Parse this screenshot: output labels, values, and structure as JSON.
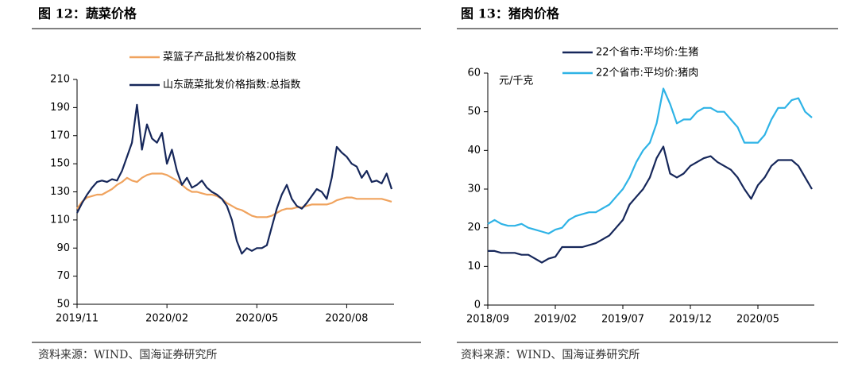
{
  "chart_data": [
    {
      "type": "line",
      "title": "图 12：蔬菜价格",
      "source": "资料来源：WIND、国海证券研究所",
      "legend": "upper left",
      "grid": false,
      "categories": [
        "2019/11",
        null,
        null,
        null,
        null,
        null,
        null,
        null,
        null,
        null,
        null,
        null,
        null,
        null,
        null,
        null,
        null,
        null,
        "2020/02",
        null,
        null,
        null,
        null,
        null,
        null,
        null,
        null,
        null,
        null,
        null,
        null,
        null,
        null,
        null,
        null,
        null,
        "2020/05",
        null,
        null,
        null,
        null,
        null,
        null,
        null,
        null,
        null,
        null,
        null,
        null,
        null,
        null,
        null,
        null,
        null,
        "2020/08",
        null,
        null,
        null,
        null,
        null,
        null,
        null,
        null,
        null
      ],
      "ylim": [
        50,
        210
      ],
      "yticks": [
        50,
        70,
        90,
        110,
        130,
        150,
        170,
        190,
        210
      ],
      "series": [
        {
          "name": "菜篮子产品批发价格200指数",
          "color": "#f0a35e",
          "values": [
            118,
            123,
            126,
            127,
            128,
            128,
            130,
            132,
            135,
            137,
            140,
            138,
            137,
            140,
            142,
            143,
            143,
            143,
            142,
            140,
            138,
            135,
            132,
            130,
            130,
            129,
            128,
            128,
            127,
            125,
            122,
            120,
            118,
            117,
            115,
            113,
            112,
            112,
            112,
            113,
            115,
            117,
            118,
            118,
            119,
            119,
            120,
            121,
            121,
            121,
            121,
            122,
            124,
            125,
            126,
            126,
            125,
            125,
            125,
            125,
            125,
            125,
            124,
            123
          ]
        },
        {
          "name": "山东蔬菜批发价格指数:总指数",
          "color": "#16275a",
          "values": [
            115,
            122,
            128,
            133,
            137,
            138,
            137,
            139,
            138,
            145,
            155,
            165,
            192,
            160,
            178,
            168,
            165,
            172,
            150,
            160,
            145,
            135,
            140,
            133,
            135,
            138,
            133,
            130,
            128,
            125,
            120,
            110,
            95,
            86,
            90,
            88,
            90,
            90,
            92,
            105,
            118,
            128,
            135,
            125,
            120,
            118,
            122,
            127,
            132,
            130,
            125,
            140,
            162,
            158,
            155,
            150,
            148,
            140,
            145,
            137,
            138,
            136,
            143,
            132
          ]
        }
      ]
    },
    {
      "type": "line",
      "title": "图 13：猪肉价格",
      "source": "资料来源：WIND、国海证券研究所",
      "legend": "upper left",
      "grid": false,
      "y_label": "元/千克",
      "categories": [
        "2018/09",
        null,
        null,
        null,
        null,
        null,
        null,
        null,
        null,
        null,
        "2019/02",
        null,
        null,
        null,
        null,
        null,
        null,
        null,
        null,
        null,
        "2019/07",
        null,
        null,
        null,
        null,
        null,
        null,
        null,
        null,
        null,
        "2019/12",
        null,
        null,
        null,
        null,
        null,
        null,
        null,
        null,
        null,
        "2020/05",
        null,
        null,
        null,
        null,
        null,
        null,
        null,
        null
      ],
      "ylim": [
        0,
        60
      ],
      "yticks": [
        0,
        10,
        20,
        30,
        40,
        50,
        60
      ],
      "series": [
        {
          "name": "22个省市:平均价:生猪",
          "color": "#16275a",
          "values": [
            14,
            14,
            13.5,
            13.5,
            13.5,
            13,
            13,
            12,
            11,
            12,
            12.5,
            15,
            15,
            15,
            15,
            15.5,
            16,
            17,
            18,
            20,
            22,
            26,
            28,
            30,
            33,
            38,
            41,
            34,
            33,
            34,
            36,
            37,
            38,
            38.5,
            37,
            36,
            35,
            33,
            30,
            27.5,
            31,
            33,
            36,
            37.5,
            37.5,
            37.5,
            36,
            33,
            30
          ]
        },
        {
          "name": "22个省市:平均价:猪肉",
          "color": "#2eb3e6",
          "values": [
            21,
            22,
            21,
            20.5,
            20.5,
            21,
            20,
            19.5,
            19,
            18.5,
            19.5,
            20,
            22,
            23,
            23.5,
            24,
            24,
            25,
            26,
            28,
            30,
            33,
            37,
            40,
            42,
            47,
            56,
            52,
            47,
            48,
            48,
            50,
            51,
            51,
            50,
            50,
            48,
            46,
            42,
            42,
            42,
            44,
            48,
            51,
            51,
            53,
            53.5,
            50,
            48.5
          ]
        }
      ]
    }
  ]
}
